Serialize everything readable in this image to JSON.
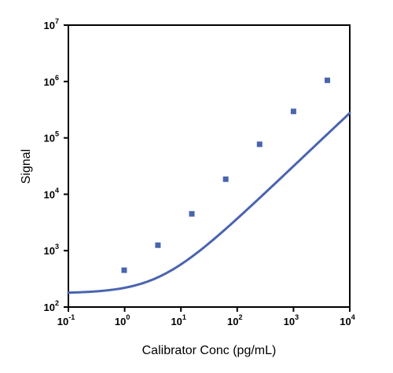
{
  "chart_data": {
    "type": "line",
    "xlabel": "Calibrator Conc (pg/mL)",
    "ylabel": "Signal",
    "x_scale": "log",
    "y_scale": "log",
    "xlim": [
      0.1,
      10000
    ],
    "ylim": [
      100,
      10000000
    ],
    "x_ticks": [
      {
        "base": "10",
        "exp": "-1"
      },
      {
        "base": "10",
        "exp": "0"
      },
      {
        "base": "10",
        "exp": "1"
      },
      {
        "base": "10",
        "exp": "2"
      },
      {
        "base": "10",
        "exp": "3"
      },
      {
        "base": "10",
        "exp": "4"
      }
    ],
    "y_ticks": [
      {
        "base": "10",
        "exp": "2"
      },
      {
        "base": "10",
        "exp": "3"
      },
      {
        "base": "10",
        "exp": "4"
      },
      {
        "base": "10",
        "exp": "5"
      },
      {
        "base": "10",
        "exp": "6"
      },
      {
        "base": "10",
        "exp": "7"
      }
    ],
    "grid": false,
    "legend": "none",
    "color": "#4a64ae",
    "points": [
      {
        "x": 0.98,
        "y": 450
      },
      {
        "x": 3.9,
        "y": 1250
      },
      {
        "x": 15.6,
        "y": 4500
      },
      {
        "x": 62.5,
        "y": 18500
      },
      {
        "x": 250,
        "y": 77000
      },
      {
        "x": 1000,
        "y": 295000
      },
      {
        "x": 4000,
        "y": 1050000
      }
    ],
    "fit_curve": {
      "model": "4PL",
      "bottom": 175,
      "top": 18000000,
      "ec50": 800000,
      "hill": 0.95
    }
  }
}
